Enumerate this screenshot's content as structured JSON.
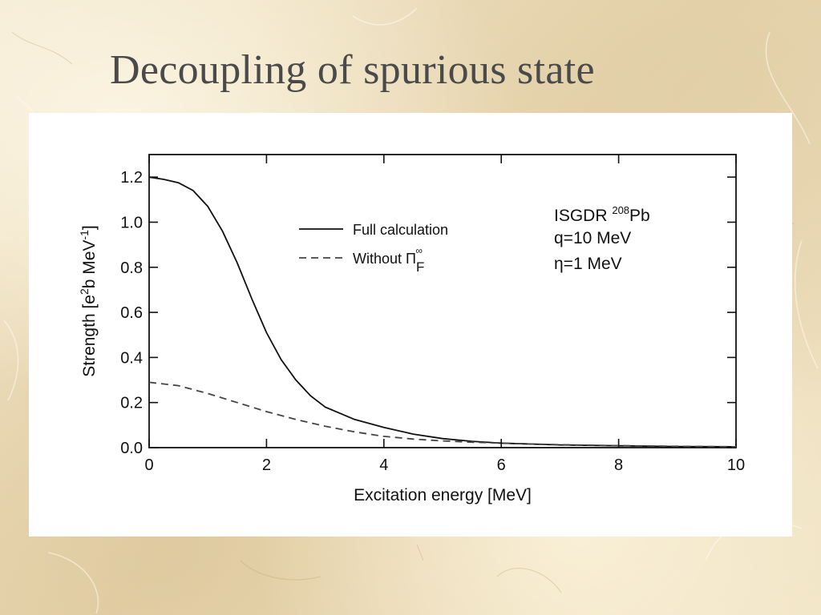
{
  "slide": {
    "title": "Decoupling of spurious state"
  },
  "chart_data": {
    "type": "line",
    "title": "",
    "xlabel": "Excitation energy [MeV]",
    "ylabel_parts": [
      "Strength [e",
      "2",
      "b MeV",
      "-1",
      "]"
    ],
    "xlim": [
      0,
      10
    ],
    "ylim": [
      0,
      1.3
    ],
    "x_ticks": [
      0,
      2,
      4,
      6,
      8,
      10
    ],
    "x_tick_labels": [
      "0",
      "2",
      "4",
      "6",
      "8",
      "10"
    ],
    "y_ticks": [
      0,
      0.2,
      0.4,
      0.6,
      0.8,
      1.0,
      1.2
    ],
    "y_tick_labels": [
      "0.0",
      "0.2",
      "0.4",
      "0.6",
      "0.8",
      "1.0",
      "1.2"
    ],
    "grid": false,
    "legend_position": "upper-center",
    "series": [
      {
        "legend_label": "Full calculation",
        "legend_parts": [
          "Full calculation"
        ],
        "style": "solid",
        "color": "#111111",
        "x": [
          0,
          0.25,
          0.5,
          0.75,
          1.0,
          1.25,
          1.5,
          1.75,
          2.0,
          2.25,
          2.5,
          2.75,
          3.0,
          3.5,
          4.0,
          4.5,
          5.0,
          5.5,
          6.0,
          7.0,
          8.0,
          9.0,
          10.0
        ],
        "y": [
          1.2,
          1.19,
          1.175,
          1.14,
          1.07,
          0.96,
          0.82,
          0.66,
          0.51,
          0.39,
          0.3,
          0.23,
          0.18,
          0.125,
          0.09,
          0.06,
          0.04,
          0.028,
          0.02,
          0.012,
          0.008,
          0.005,
          0.004
        ]
      },
      {
        "legend_label": "Without Π F ∞",
        "legend_parts": [
          "Without Π",
          "F",
          "∞"
        ],
        "style": "dashed",
        "color": "#444444",
        "x": [
          0,
          0.5,
          1.0,
          1.5,
          2.0,
          2.5,
          3.0,
          3.5,
          4.0,
          4.5,
          5.0,
          5.5,
          6.0,
          7.0,
          8.0,
          9.0,
          10.0
        ],
        "y": [
          0.29,
          0.275,
          0.24,
          0.2,
          0.16,
          0.125,
          0.095,
          0.07,
          0.05,
          0.038,
          0.03,
          0.024,
          0.02,
          0.013,
          0.009,
          0.006,
          0.004
        ]
      }
    ],
    "annotations": [
      {
        "parts": [
          "ISGDR  ",
          "208",
          "Pb"
        ]
      },
      {
        "parts": [
          "q=10 MeV"
        ]
      },
      {
        "parts": [
          "η=1 MeV"
        ]
      }
    ]
  }
}
